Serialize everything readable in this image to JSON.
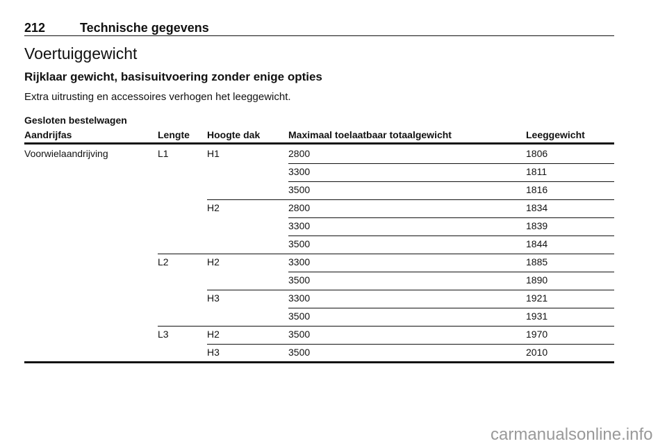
{
  "header": {
    "page_number": "212",
    "section": "Technische gegevens"
  },
  "title": "Voertuiggewicht",
  "subtitle": "Rijklaar gewicht, basisuitvoering zonder enige opties",
  "note": "Extra uitrusting en accessoires verhogen het leeggewicht.",
  "table": {
    "caption": "Gesloten bestelwagen",
    "columns": [
      "Aandrijfas",
      "Lengte",
      "Hoogte dak",
      "Maximaal toelaatbaar totaalgewicht",
      "Leeggewicht"
    ],
    "rows": [
      {
        "drive": "Voorwielaandrijving",
        "length": "L1",
        "roof": "H1",
        "max_weight": 2800,
        "empty_weight": 1806
      },
      {
        "max_weight": 3300,
        "empty_weight": 1811
      },
      {
        "max_weight": 3500,
        "empty_weight": 1816
      },
      {
        "roof": "H2",
        "max_weight": 2800,
        "empty_weight": 1834
      },
      {
        "max_weight": 3300,
        "empty_weight": 1839
      },
      {
        "max_weight": 3500,
        "empty_weight": 1844
      },
      {
        "length": "L2",
        "roof": "H2",
        "max_weight": 3300,
        "empty_weight": 1885
      },
      {
        "max_weight": 3500,
        "empty_weight": 1890
      },
      {
        "roof": "H3",
        "max_weight": 3300,
        "empty_weight": 1921
      },
      {
        "max_weight": 3500,
        "empty_weight": 1931
      },
      {
        "length": "L3",
        "roof": "H2",
        "max_weight": 3500,
        "empty_weight": 1970
      },
      {
        "roof": "H3",
        "max_weight": 3500,
        "empty_weight": 2010
      }
    ]
  },
  "watermark": "carmanualsonline.info"
}
